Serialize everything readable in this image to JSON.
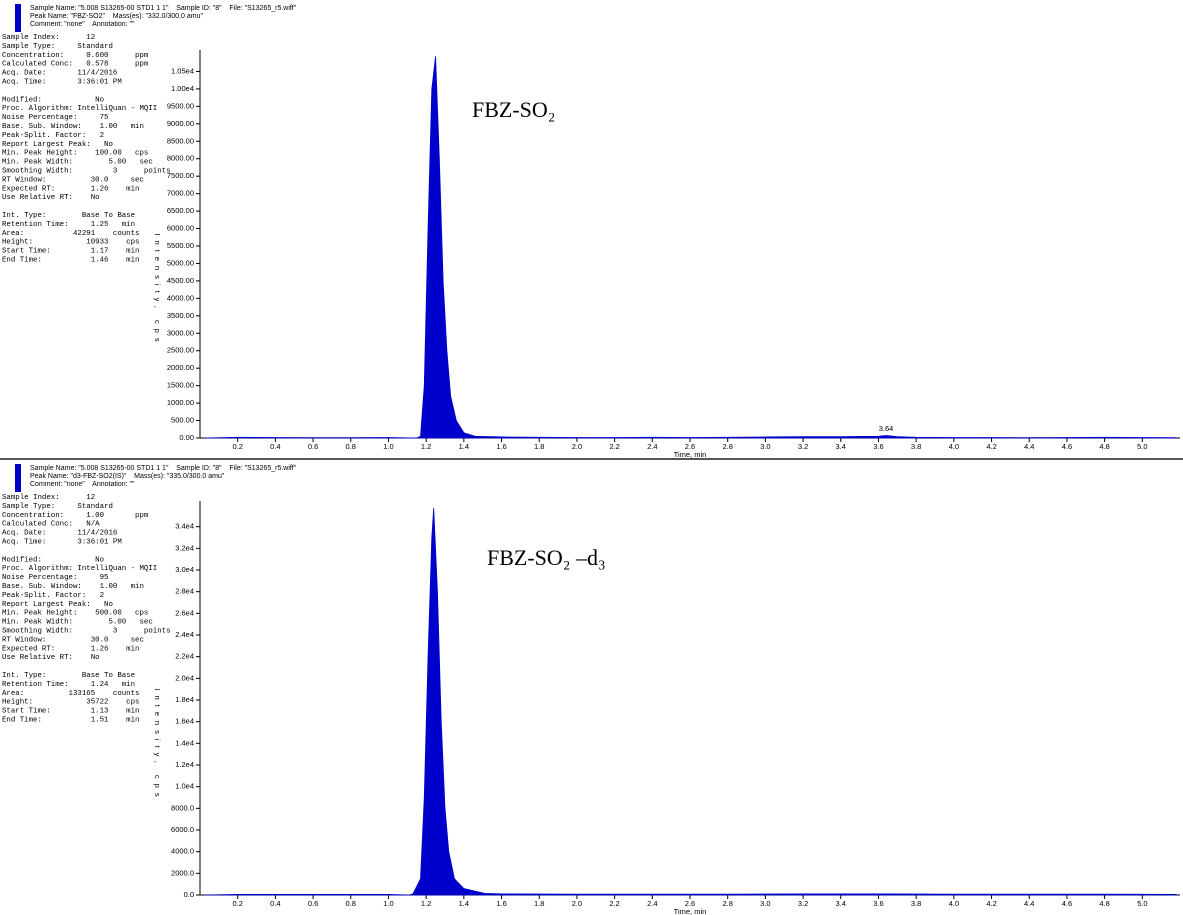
{
  "chart_data": [
    {
      "type": "area",
      "header": [
        "Sample Name: \"5.008 S13265-00 STD1 1 1\"    Sample ID: \"8\"    File: \"S13265_r5.wiff\"",
        "Peak Name: \"FBZ-SO2\"    Mass(es): \"332.0/300.0 amu\"",
        "Comment: \"none\"    Annotation: \"\""
      ],
      "info": [
        [
          "Sample Index:      12",
          "Sample Type:     Standard",
          "Concentration:     0.600      ppm",
          "Calculated Conc:   0.578      ppm",
          "Acq. Date:       11/4/2016",
          "Acq. Time:       3:36:01 PM"
        ],
        [
          "Modified:            No",
          "Proc. Algorithm: IntelliQuan - MQII",
          "Noise Percentage:     75",
          "Base. Sub. Window:    1.00   min",
          "Peak-Split. Factor:   2",
          "Report Largest Peak:   No",
          "Min. Peak Height:    100.00   cps",
          "Min. Peak Width:        5.00   sec",
          "Smoothing Width:         3      points",
          "RT Window:          30.0     sec",
          "Expected RT:        1.26    min",
          "Use Relative RT:    No"
        ],
        [
          "Int. Type:        Base To Base",
          "Retention Time:     1.25   min",
          "Area:           42291    counts",
          "Height:            10933    cps",
          "Start Time:         1.17    min",
          "End Time:           1.46    min"
        ]
      ],
      "compound_label": "FBZ-SO₂",
      "ylabel": "Intensity, cps",
      "xlabel": "Time, min",
      "annotations": [
        3.64
      ],
      "xlim": [
        0,
        5.2
      ],
      "ylim": [
        0,
        11000
      ],
      "xticks": [
        0.2,
        0.4,
        0.6,
        0.8,
        {
          "value": 1,
          "label": "1.0"
        },
        1.2,
        1.4,
        1.6,
        1.8,
        {
          "value": 2,
          "label": "2.0"
        },
        2.2,
        2.4,
        2.6,
        2.8,
        {
          "value": 3,
          "label": "3.0"
        },
        3.2,
        3.4,
        3.6,
        3.8,
        {
          "value": 4,
          "label": "4.0"
        },
        4.2,
        4.4,
        4.6,
        4.8,
        {
          "value": 5,
          "label": "5.0"
        }
      ],
      "yticks": [
        {
          "value": 0,
          "label": "0.00"
        },
        {
          "value": 500,
          "label": "500.00"
        },
        {
          "value": 1000,
          "label": "1000.00"
        },
        {
          "value": 1500,
          "label": "1500.00"
        },
        {
          "value": 2000,
          "label": "2000.00"
        },
        {
          "value": 2500,
          "label": "2500.00"
        },
        {
          "value": 3000,
          "label": "3000.00"
        },
        {
          "value": 3500,
          "label": "3500.00"
        },
        {
          "value": 4000,
          "label": "4000.00"
        },
        {
          "value": 4500,
          "label": "4500.00"
        },
        {
          "value": 5000,
          "label": "5000.00"
        },
        {
          "value": 5500,
          "label": "5500.00"
        },
        {
          "value": 6000,
          "label": "6000.00"
        },
        {
          "value": 6500,
          "label": "6500.00"
        },
        {
          "value": 7000,
          "label": "7000.00"
        },
        {
          "value": 7500,
          "label": "7500.00"
        },
        {
          "value": 8000,
          "label": "8000.00"
        },
        {
          "value": 8500,
          "label": "8500.00"
        },
        {
          "value": 9000,
          "label": "9000.00"
        },
        {
          "value": 9500,
          "label": "9500.00"
        },
        {
          "value": 10000,
          "label": "1.00e4"
        },
        {
          "value": 10500,
          "label": "1.05e4"
        }
      ],
      "series": [
        {
          "color": "#0000cc",
          "x": [
            0.02,
            0.2,
            0.4,
            0.6,
            0.8,
            1.0,
            1.15,
            1.17,
            1.19,
            1.21,
            1.23,
            1.25,
            1.27,
            1.29,
            1.31,
            1.33,
            1.36,
            1.4,
            1.46,
            1.6,
            1.8,
            2.0,
            2.2,
            2.4,
            2.6,
            2.8,
            3.0,
            3.2,
            3.4,
            3.6,
            3.64,
            3.7,
            3.8,
            4.0,
            4.2,
            4.4,
            4.6,
            4.8,
            5.0,
            5.18
          ],
          "values": [
            0,
            20,
            15,
            10,
            10,
            15,
            0,
            50,
            1500,
            6000,
            10000,
            10933,
            8000,
            4500,
            2500,
            1200,
            500,
            150,
            50,
            30,
            20,
            15,
            15,
            20,
            15,
            20,
            30,
            40,
            40,
            50,
            70,
            40,
            20,
            15,
            15,
            10,
            15,
            20,
            15,
            10
          ]
        }
      ]
    },
    {
      "type": "area",
      "header": [
        "Sample Name: \"5.008 S13265-00 STD1 1 1\"    Sample ID: \"8\"    File: \"S13265_r5.wiff\"",
        "Peak Name: \"d3-FBZ-SO2(IS)\"    Mass(es): \"335.0/300.0 amu\"",
        "Comment: \"none\"    Annotation: \"\""
      ],
      "info": [
        [
          "Sample Index:      12",
          "Sample Type:     Standard",
          "Concentration:     1.00       ppm",
          "Calculated Conc:   N/A",
          "Acq. Date:       11/4/2016",
          "Acq. Time:       3:36:01 PM"
        ],
        [
          "Modified:            No",
          "Proc. Algorithm: IntelliQuan - MQII",
          "Noise Percentage:     95",
          "Base. Sub. Window:    1.00   min",
          "Peak-Split. Factor:   2",
          "Report Largest Peak:   No",
          "Min. Peak Height:    500.00   cps",
          "Min. Peak Width:        5.00   sec",
          "Smoothing Width:         3      points",
          "RT Window:          30.0     sec",
          "Expected RT:        1.26    min",
          "Use Relative RT:    No"
        ],
        [
          "Int. Type:        Base To Base",
          "Retention Time:     1.24   min",
          "Area:          133165    counts",
          "Height:            35722    cps",
          "Start Time:         1.13    min",
          "End Time:           1.51    min"
        ]
      ],
      "compound_label": "FBZ-SO₂ –d₃",
      "ylabel": "Intensity, cps",
      "xlabel": "Time, min",
      "xlim": [
        0,
        5.2
      ],
      "ylim": [
        0,
        36000
      ],
      "xticks": [
        0.2,
        0.4,
        0.6,
        0.8,
        {
          "value": 1,
          "label": "1.0"
        },
        1.2,
        1.4,
        1.6,
        1.8,
        {
          "value": 2,
          "label": "2.0"
        },
        2.2,
        2.4,
        2.6,
        2.8,
        {
          "value": 3,
          "label": "3.0"
        },
        3.2,
        3.4,
        3.6,
        3.8,
        {
          "value": 4,
          "label": "4.0"
        },
        4.2,
        4.4,
        4.6,
        4.8,
        {
          "value": 5,
          "label": "5.0"
        }
      ],
      "yticks": [
        {
          "value": 0,
          "label": "0.0"
        },
        {
          "value": 2000,
          "label": "2000.0"
        },
        {
          "value": 4000,
          "label": "4000.0"
        },
        {
          "value": 6000,
          "label": "6000.0"
        },
        {
          "value": 8000,
          "label": "8000.0"
        },
        {
          "value": 10000,
          "label": "1.0e4"
        },
        {
          "value": 12000,
          "label": "1.2e4"
        },
        {
          "value": 14000,
          "label": "1.4e4"
        },
        {
          "value": 16000,
          "label": "1.6e4"
        },
        {
          "value": 18000,
          "label": "1.8e4"
        },
        {
          "value": 20000,
          "label": "2.0e4"
        },
        {
          "value": 22000,
          "label": "2.2e4"
        },
        {
          "value": 24000,
          "label": "2.4e4"
        },
        {
          "value": 26000,
          "label": "2.6e4"
        },
        {
          "value": 28000,
          "label": "2.8e4"
        },
        {
          "value": 30000,
          "label": "3.0e4"
        },
        {
          "value": 32000,
          "label": "3.2e4"
        },
        {
          "value": 34000,
          "label": "3.4e4"
        }
      ],
      "series": [
        {
          "color": "#0000cc",
          "x": [
            0.02,
            0.2,
            0.4,
            0.6,
            0.8,
            1.0,
            1.11,
            1.13,
            1.17,
            1.19,
            1.21,
            1.23,
            1.24,
            1.26,
            1.28,
            1.3,
            1.32,
            1.35,
            1.4,
            1.51,
            1.6,
            2.0,
            2.4,
            2.8,
            3.2,
            3.6,
            4.0,
            4.4,
            4.8,
            5.18
          ],
          "values": [
            0,
            60,
            50,
            50,
            50,
            60,
            0,
            100,
            1500,
            9000,
            22000,
            33000,
            35722,
            28000,
            16000,
            8000,
            4000,
            1500,
            600,
            150,
            100,
            80,
            80,
            80,
            100,
            100,
            80,
            80,
            80,
            60
          ]
        }
      ]
    }
  ]
}
